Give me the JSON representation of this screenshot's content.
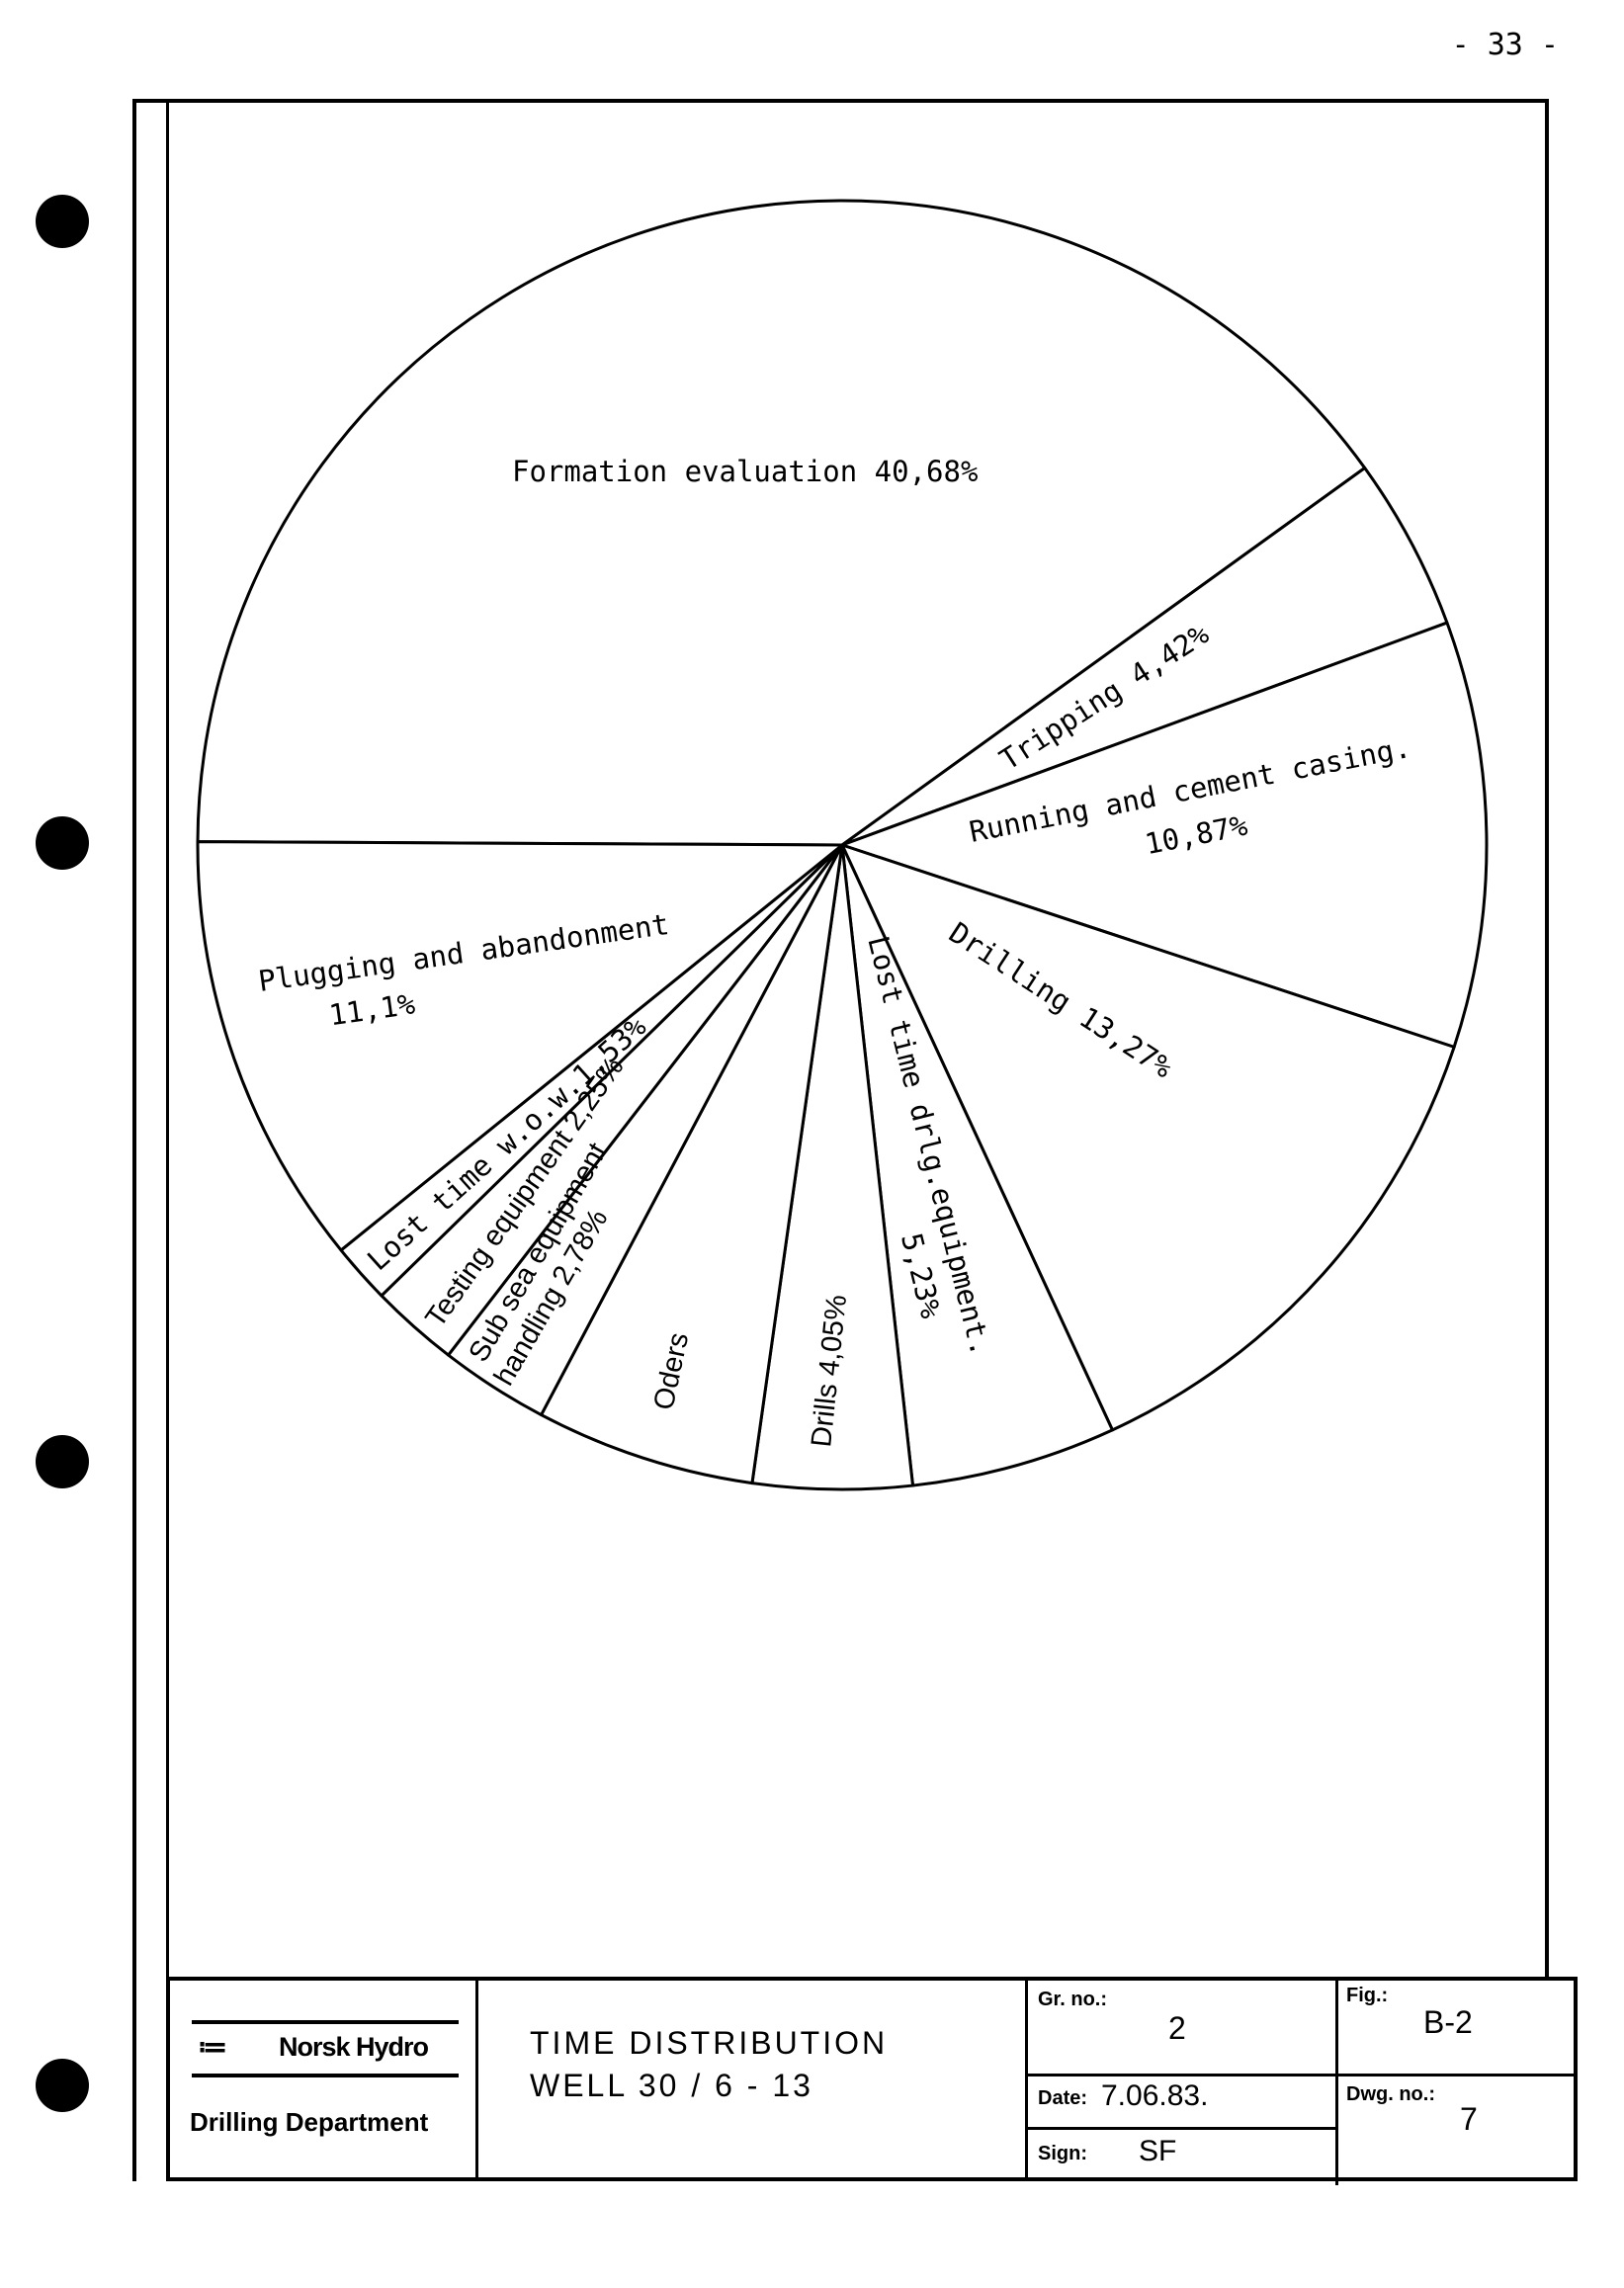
{
  "page": {
    "number": "- 33 -"
  },
  "chart_data": {
    "type": "pie",
    "title": "",
    "slices": [
      {
        "label": "Formation evaluation 40,68%",
        "value": 40.68
      },
      {
        "label": "Tripping 4,42%",
        "value": 4.42
      },
      {
        "label_lines": [
          "Running and cement casing.",
          "10,87%"
        ],
        "value": 10.87
      },
      {
        "label": "Drilling 13,27%",
        "value": 13.27
      },
      {
        "label_lines": [
          "Lost time drlg.equipment.",
          "5,23%"
        ],
        "value": 5.23
      },
      {
        "label": "Drills 4,05%",
        "value": 4.05
      },
      {
        "label": "Oders",
        "value": 5.6
      },
      {
        "label_lines": [
          "Sub sea equipment",
          "handling 2,78%"
        ],
        "value": 2.78
      },
      {
        "label": "Testing equipment 2,25%",
        "value": 2.25
      },
      {
        "label": "Lost time w.o.w.1,53%",
        "value": 1.53
      },
      {
        "label_lines": [
          "Plugging and abandonment",
          "11,1%"
        ],
        "value": 11.1
      }
    ],
    "start_angle_deg": 179.7,
    "direction": "counterclockwise",
    "fill_color": "#ffffff",
    "stroke_color": "#000000"
  },
  "title_block": {
    "logo_icon": "norsk-hydro-viking-ship-icon",
    "company": "Norsk Hydro",
    "department": "Drilling Department",
    "title_lines": [
      "TIME DISTRIBUTION",
      "WELL  30 / 6 - 13"
    ],
    "gr_no_label": "Gr. no.:",
    "gr_no": "2",
    "fig_label": "Fig.:",
    "fig": "B-2",
    "date_label": "Date:",
    "date": "7.06.83.",
    "sign_label": "Sign:",
    "sign": "SF",
    "dwg_no_label": "Dwg. no.:",
    "dwg_no": "7"
  }
}
